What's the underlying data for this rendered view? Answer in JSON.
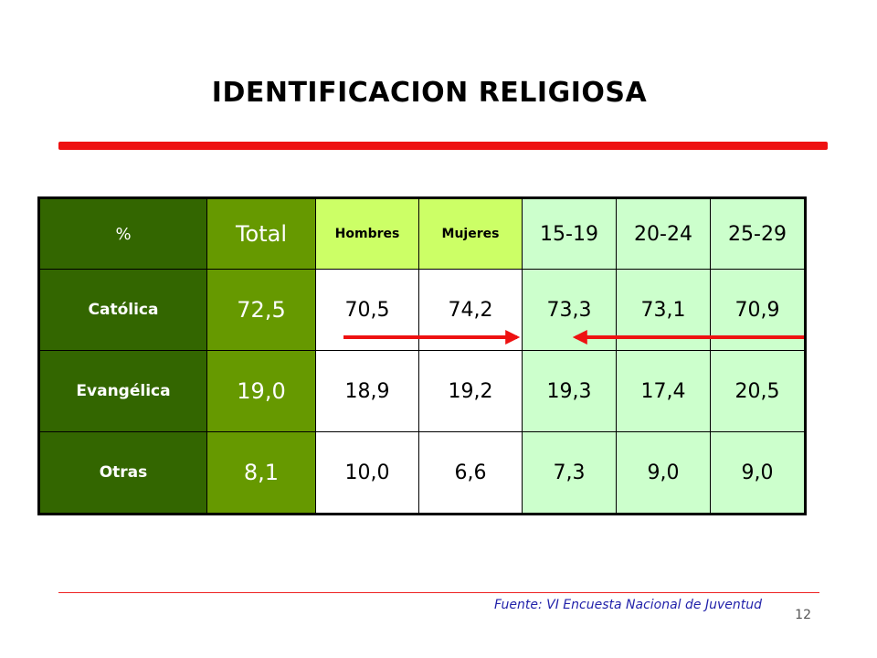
{
  "title": "IDENTIFICACION RELIGIOSA",
  "table": {
    "header": {
      "label": "%",
      "total": "Total",
      "hombres": "Hombres",
      "mujeres": "Mujeres",
      "age1": "15-19",
      "age2": "20-24",
      "age3": "25-29"
    },
    "rows": [
      {
        "label": "Católica",
        "total": "72,5",
        "hombres": "70,5",
        "mujeres": "74,2",
        "age1": "73,3",
        "age2": "73,1",
        "age3": "70,9"
      },
      {
        "label": "Evangélica",
        "total": "19,0",
        "hombres": "18,9",
        "mujeres": "19,2",
        "age1": "19,3",
        "age2": "17,4",
        "age3": "20,5"
      },
      {
        "label": "Otras",
        "total": "8,1",
        "hombres": "10,0",
        "mujeres": "6,6",
        "age1": "7,3",
        "age2": "9,0",
        "age3": "9,0"
      }
    ]
  },
  "arrows": [
    {
      "from_column": "Hombres",
      "to_column": "Mujeres",
      "direction": "right"
    },
    {
      "from_column": "25-29",
      "to_column": "15-19",
      "direction": "left"
    }
  ],
  "footer": {
    "source": "Fuente: VI Encuesta Nacional de Juventud",
    "page_number": "12"
  },
  "colors": {
    "accent_red": "#ee1111",
    "label_column": "#336600",
    "total_column": "#669900",
    "sex_header": "#ccff66",
    "age_columns": "#ccffcc",
    "source_text": "#2222aa"
  }
}
